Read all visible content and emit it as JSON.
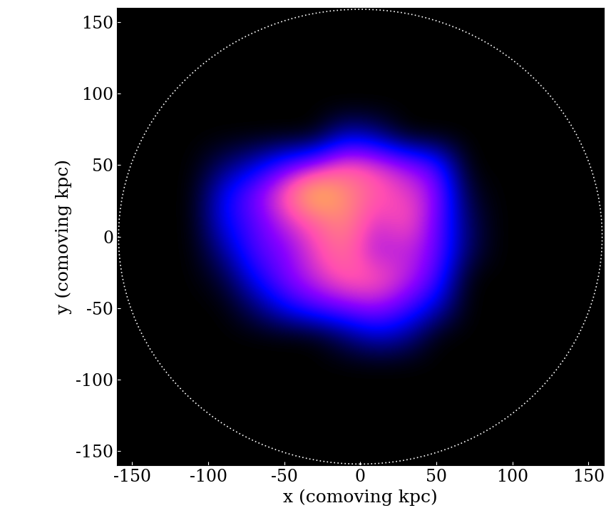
{
  "chart_data": {
    "type": "heatmap",
    "x_label": "x (comoving kpc)",
    "y_label": "y (comoving kpc)",
    "xlim": [
      -160,
      160
    ],
    "ylim": [
      -160,
      160
    ],
    "xticks": [
      -150,
      -100,
      -50,
      0,
      50,
      100,
      150
    ],
    "yticks": [
      -150,
      -100,
      -50,
      0,
      50,
      100,
      150
    ],
    "grid": false,
    "x_edges": [
      -160,
      -140,
      -120,
      -100,
      -80,
      -60,
      -40,
      -20,
      0,
      20,
      40,
      60,
      80,
      100,
      120,
      140,
      160
    ],
    "y_edges": [
      -160,
      -140,
      -120,
      -100,
      -80,
      -60,
      -40,
      -20,
      0,
      20,
      40,
      60,
      80,
      100,
      120,
      140,
      160
    ],
    "value_range": [
      0,
      1
    ],
    "cells": [
      [
        0,
        0,
        0,
        0,
        0,
        0,
        0,
        0,
        0,
        0,
        0,
        0,
        0,
        0,
        0,
        0
      ],
      [
        0,
        0,
        0,
        0,
        0,
        0,
        0,
        0,
        0,
        0,
        0,
        0,
        0,
        0,
        0,
        0
      ],
      [
        0,
        0,
        0,
        0,
        0,
        0,
        0,
        0,
        0,
        0,
        0,
        0,
        0,
        0,
        0,
        0
      ],
      [
        0,
        0,
        0,
        0,
        0,
        0,
        0,
        0,
        0,
        0,
        0,
        0,
        0,
        0,
        0,
        0
      ],
      [
        0,
        0,
        0,
        0,
        0,
        0,
        0,
        0.1,
        0.2,
        0.15,
        0,
        0,
        0,
        0,
        0,
        0
      ],
      [
        0,
        0,
        0,
        0,
        0.1,
        0.25,
        0.35,
        0.4,
        0.45,
        0.35,
        0.2,
        0,
        0,
        0,
        0,
        0
      ],
      [
        0,
        0,
        0,
        0.05,
        0.25,
        0.4,
        0.5,
        0.6,
        0.6,
        0.5,
        0.35,
        0,
        0,
        0,
        0,
        0
      ],
      [
        0,
        0,
        0,
        0.15,
        0.35,
        0.4,
        0.55,
        0.65,
        0.45,
        0.5,
        0.4,
        0.1,
        0,
        0,
        0,
        0
      ],
      [
        0,
        0,
        0,
        0.25,
        0.35,
        0.5,
        0.6,
        0.7,
        0.5,
        0.6,
        0.4,
        0.1,
        0,
        0,
        0,
        0
      ],
      [
        0,
        0,
        0,
        0.25,
        0.4,
        0.6,
        0.85,
        0.7,
        0.6,
        0.55,
        0.45,
        0.05,
        0,
        0,
        0,
        0
      ],
      [
        0,
        0,
        0,
        0.1,
        0.2,
        0.35,
        0.45,
        0.6,
        0.55,
        0.45,
        0.35,
        0,
        0,
        0,
        0,
        0
      ],
      [
        0,
        0,
        0,
        0,
        0,
        0,
        0,
        0.2,
        0.15,
        0,
        0,
        0,
        0,
        0,
        0,
        0
      ],
      [
        0,
        0,
        0,
        0,
        0,
        0,
        0,
        0,
        0,
        0,
        0,
        0,
        0,
        0,
        0,
        0
      ],
      [
        0,
        0,
        0,
        0,
        0,
        0,
        0,
        0,
        0,
        0,
        0,
        0,
        0,
        0,
        0,
        0
      ],
      [
        0,
        0,
        0,
        0,
        0,
        0,
        0,
        0,
        0,
        0,
        0,
        0,
        0,
        0,
        0,
        0
      ],
      [
        0,
        0,
        0,
        0,
        0,
        0,
        0,
        0,
        0,
        0,
        0,
        0,
        0,
        0,
        0,
        0
      ]
    ],
    "circle": {
      "center": [
        0,
        0
      ],
      "radius": 159
    }
  }
}
